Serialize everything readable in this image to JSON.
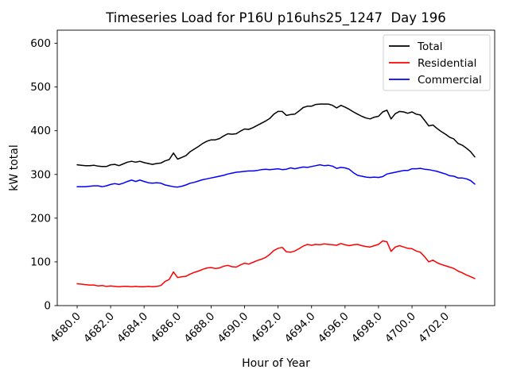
{
  "window": {
    "background": "#ffffff"
  },
  "chart_data": {
    "type": "line",
    "title": "Timeseries Load for P16U p16uhs25_1247  Day 196",
    "xlabel": "Hour of Year",
    "ylabel": "kW total",
    "xlim": [
      4678.8125,
      4704.9375
    ],
    "ylim": [
      0,
      630
    ],
    "grid": false,
    "legend_position": "upper right",
    "x_tick_rotation": 45,
    "x_ticks": [
      4680,
      4682,
      4684,
      4686,
      4688,
      4690,
      4692,
      4694,
      4696,
      4698,
      4700,
      4702
    ],
    "x_tick_labels": [
      "4680.0",
      "4682.0",
      "4684.0",
      "4686.0",
      "4688.0",
      "4690.0",
      "4692.0",
      "4694.0",
      "4696.0",
      "4698.0",
      "4700.0",
      "4702.0"
    ],
    "y_ticks": [
      0,
      100,
      200,
      300,
      400,
      500,
      600
    ],
    "y_tick_labels": [
      "0",
      "100",
      "200",
      "300",
      "400",
      "500",
      "600"
    ],
    "x_start": 4680.0,
    "x_step": 0.25,
    "colors": {
      "total": "#000000",
      "residential": "#ff0000",
      "commercial": "#0000ff"
    },
    "series": [
      {
        "name": "Total",
        "color": "#000000",
        "values": [
          322,
          321,
          320,
          320,
          321,
          319,
          318,
          318,
          322,
          323,
          320,
          324,
          328,
          330,
          328,
          330,
          327,
          325,
          323,
          325,
          326,
          331,
          334,
          349,
          335,
          339,
          343,
          352,
          358,
          364,
          371,
          376,
          379,
          379,
          382,
          388,
          393,
          392,
          393,
          399,
          404,
          403,
          407,
          412,
          417,
          422,
          428,
          438,
          444,
          444,
          435,
          437,
          438,
          445,
          453,
          456,
          456,
          460,
          461,
          461,
          461,
          458,
          452,
          458,
          454,
          449,
          443,
          438,
          433,
          429,
          427,
          431,
          433,
          443,
          447,
          427,
          439,
          444,
          443,
          440,
          443,
          438,
          436,
          424,
          411,
          413,
          405,
          398,
          392,
          385,
          381,
          371,
          367,
          360,
          352,
          340
        ]
      },
      {
        "name": "Residential",
        "color": "#ff0000",
        "values": [
          50,
          49,
          48,
          47,
          47,
          45,
          46,
          44,
          45,
          44,
          43,
          44,
          44,
          43,
          44,
          43,
          43,
          44,
          43,
          44,
          46,
          55,
          60,
          77,
          64,
          66,
          67,
          72,
          76,
          79,
          83,
          86,
          87,
          85,
          86,
          90,
          92,
          89,
          88,
          93,
          97,
          95,
          99,
          103,
          106,
          110,
          117,
          126,
          131,
          133,
          123,
          122,
          125,
          130,
          136,
          140,
          138,
          140,
          139,
          141,
          140,
          139,
          138,
          142,
          139,
          137,
          139,
          140,
          137,
          135,
          134,
          137,
          140,
          148,
          146,
          124,
          134,
          137,
          134,
          131,
          130,
          125,
          122,
          112,
          100,
          104,
          98,
          94,
          91,
          88,
          85,
          79,
          75,
          70,
          66,
          62
        ]
      },
      {
        "name": "Commercial",
        "color": "#0000ff",
        "values": [
          272,
          272,
          272,
          273,
          274,
          274,
          272,
          274,
          277,
          279,
          277,
          280,
          284,
          287,
          284,
          287,
          284,
          281,
          280,
          281,
          280,
          276,
          274,
          272,
          271,
          273,
          276,
          280,
          282,
          285,
          288,
          290,
          292,
          294,
          296,
          298,
          301,
          303,
          305,
          306,
          307,
          308,
          308,
          309,
          311,
          312,
          311,
          312,
          313,
          311,
          312,
          315,
          313,
          315,
          317,
          316,
          318,
          320,
          322,
          320,
          321,
          319,
          314,
          316,
          315,
          312,
          304,
          298,
          296,
          294,
          293,
          294,
          293,
          295,
          301,
          303,
          305,
          307,
          309,
          309,
          313,
          313,
          314,
          312,
          311,
          309,
          307,
          304,
          301,
          297,
          296,
          292,
          292,
          290,
          286,
          278
        ]
      }
    ]
  }
}
